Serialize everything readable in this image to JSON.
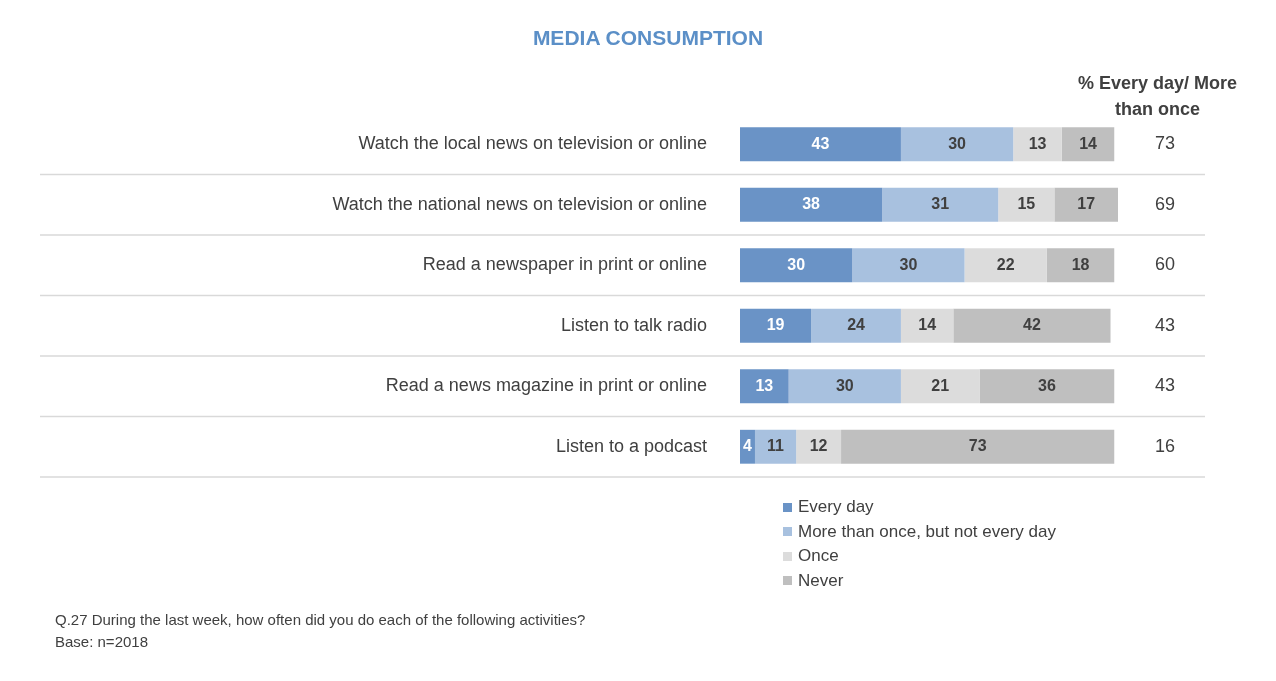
{
  "chart_data": {
    "type": "bar",
    "orientation": "horizontal",
    "stacked": true,
    "title": "MEDIA CONSUMPTION",
    "categories": [
      "Watch the local news on television or online",
      "Watch the national news on television or online",
      "Read a newspaper in print or online",
      "Listen to talk radio",
      "Read a news magazine in print or online",
      "Listen to a podcast"
    ],
    "series": [
      {
        "name": "Every day",
        "color": "#6a93c6",
        "values": [
          43,
          38,
          30,
          19,
          13,
          4
        ]
      },
      {
        "name": "More than once, but not every day",
        "color": "#a8c1df",
        "values": [
          30,
          31,
          30,
          24,
          30,
          11
        ]
      },
      {
        "name": "Once",
        "color": "#dcdcdc",
        "values": [
          13,
          15,
          22,
          14,
          21,
          12
        ]
      },
      {
        "name": "Never",
        "color": "#bfbfbf",
        "values": [
          14,
          17,
          18,
          42,
          36,
          73
        ]
      }
    ],
    "xlim": [
      0,
      101
    ],
    "tick_labels": "y",
    "grid": "y",
    "legend": "bottom",
    "data_labels": true,
    "annotations": [
      "% Every day/ More than once",
      "73",
      "69",
      "60",
      "43",
      "43",
      "16",
      "Q.27 During the last week, how often did you do each of the following activities?",
      "Base: n=2018"
    ]
  }
}
